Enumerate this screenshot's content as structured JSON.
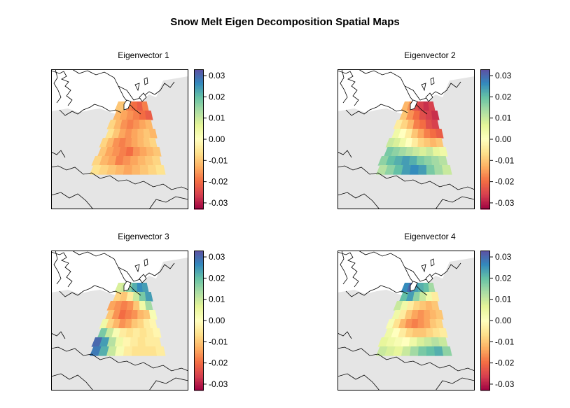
{
  "chart_data": {
    "type": "heatmap",
    "title": "Snow Melt Eigen Decomposition Spatial Maps",
    "color_scale": {
      "range": [
        -0.033,
        0.033
      ],
      "ticks": [
        "0.03",
        "0.02",
        "0.01",
        "0.00",
        "-0.01",
        "-0.02",
        "-0.03"
      ],
      "tick_values": [
        0.03,
        0.02,
        0.01,
        0.0,
        -0.01,
        -0.02,
        -0.03
      ],
      "palette": [
        "#9e0142",
        "#d53e4f",
        "#f46d43",
        "#fdae61",
        "#fee08b",
        "#ffffbf",
        "#e6f598",
        "#abdda4",
        "#66c2a5",
        "#3288bd",
        "#5e4fa2"
      ]
    },
    "background_color": "#e5e5e5",
    "panels": [
      {
        "title": "Eigenvector 1",
        "grid_rows": [
          [
            -0.01,
            -0.01,
            -0.018,
            -0.02,
            -0.022,
            -0.018
          ],
          [
            -0.012,
            -0.014,
            -0.016,
            -0.018,
            -0.02,
            -0.022
          ],
          [
            -0.008,
            -0.012,
            -0.016,
            -0.018,
            -0.016,
            -0.014,
            -0.012
          ],
          [
            -0.006,
            -0.01,
            -0.014,
            -0.016,
            -0.014,
            -0.012,
            -0.01,
            -0.012
          ],
          [
            -0.008,
            -0.012,
            -0.016,
            -0.018,
            -0.016,
            -0.014,
            -0.012,
            -0.01,
            -0.008
          ],
          [
            -0.01,
            -0.014,
            -0.016,
            -0.018,
            -0.02,
            -0.016,
            -0.014,
            -0.012,
            -0.01
          ],
          [
            -0.008,
            -0.012,
            -0.014,
            -0.018,
            -0.016,
            -0.014,
            -0.012,
            -0.01,
            -0.008
          ],
          [
            -0.006,
            -0.008,
            -0.01,
            -0.012,
            -0.014,
            -0.012,
            -0.01,
            -0.008,
            -0.006
          ]
        ]
      },
      {
        "title": "Eigenvector 2",
        "grid_rows": [
          [
            -0.012,
            -0.016,
            -0.024,
            -0.026,
            -0.028,
            -0.026
          ],
          [
            -0.01,
            -0.016,
            -0.02,
            -0.024,
            -0.026,
            -0.028
          ],
          [
            -0.004,
            -0.008,
            -0.012,
            -0.018,
            -0.02,
            -0.024,
            -0.026
          ],
          [
            0.004,
            0.0,
            -0.004,
            -0.01,
            -0.014,
            -0.018,
            -0.02,
            -0.022
          ],
          [
            0.01,
            0.008,
            0.004,
            0.0,
            -0.004,
            -0.008,
            -0.01,
            -0.012,
            -0.01
          ],
          [
            0.018,
            0.016,
            0.014,
            0.012,
            0.01,
            0.008,
            0.01,
            0.006,
            0.004
          ],
          [
            0.016,
            0.02,
            0.022,
            0.024,
            0.022,
            0.018,
            0.016,
            0.014,
            0.012
          ],
          [
            0.012,
            0.016,
            0.02,
            0.024,
            0.026,
            0.024,
            0.018,
            0.014,
            0.01
          ]
        ]
      },
      {
        "title": "Eigenvector 3",
        "grid_rows": [
          [
            0.008,
            0.01,
            0.016,
            0.022,
            0.026,
            0.024
          ],
          [
            -0.008,
            -0.01,
            -0.004,
            0.01,
            0.018,
            0.024
          ],
          [
            -0.014,
            -0.016,
            -0.018,
            -0.016,
            -0.01,
            0.004,
            0.014
          ],
          [
            -0.01,
            -0.016,
            -0.02,
            -0.018,
            -0.016,
            -0.012,
            -0.01,
            0.002
          ],
          [
            0.004,
            -0.008,
            -0.012,
            -0.016,
            -0.014,
            -0.01,
            -0.008,
            -0.004,
            -0.002
          ],
          [
            0.018,
            0.01,
            0.002,
            -0.004,
            -0.006,
            -0.004,
            -0.006,
            -0.004,
            -0.002
          ],
          [
            0.03,
            0.024,
            0.012,
            0.004,
            -0.002,
            -0.004,
            -0.006,
            -0.004,
            -0.004
          ],
          [
            0.028,
            0.022,
            0.01,
            0.002,
            -0.004,
            -0.006,
            -0.006,
            -0.006,
            -0.004
          ]
        ]
      },
      {
        "title": "Eigenvector 4",
        "grid_rows": [
          [
            0.026,
            0.03,
            0.024,
            0.022,
            0.02,
            0.014
          ],
          [
            0.02,
            0.024,
            0.016,
            0.01,
            0.004,
            -0.004
          ],
          [
            0.01,
            0.004,
            -0.004,
            -0.008,
            -0.01,
            -0.012,
            -0.01
          ],
          [
            0.004,
            -0.004,
            -0.01,
            -0.014,
            -0.016,
            -0.014,
            -0.012,
            -0.01
          ],
          [
            0.002,
            -0.006,
            -0.012,
            -0.016,
            -0.018,
            -0.016,
            -0.014,
            -0.01,
            -0.008
          ],
          [
            0.004,
            0.0,
            -0.004,
            -0.008,
            -0.01,
            -0.01,
            -0.008,
            -0.006,
            -0.004
          ],
          [
            0.006,
            0.004,
            0.002,
            0.0,
            0.004,
            0.008,
            0.01,
            0.012,
            0.01
          ],
          [
            0.01,
            0.008,
            0.006,
            0.01,
            0.014,
            0.018,
            0.02,
            0.022,
            0.016
          ]
        ]
      }
    ]
  }
}
